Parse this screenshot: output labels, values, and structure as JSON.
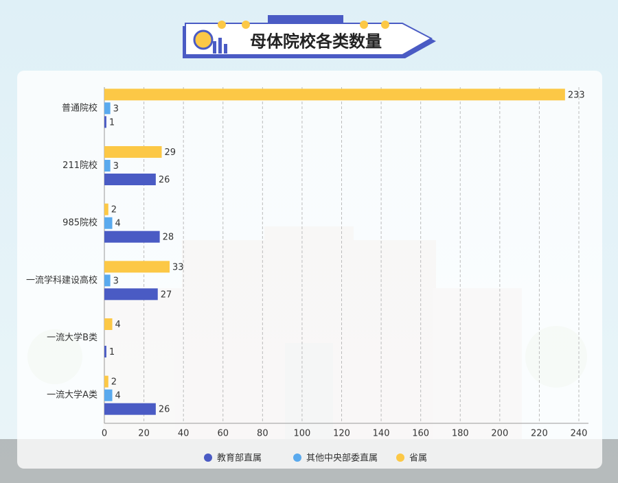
{
  "chart_data": {
    "type": "bar",
    "orientation": "horizontal",
    "title": "母体院校各类数量",
    "categories": [
      "普通院校",
      "211院校",
      "985院校",
      "一流学科建设高校",
      "一流大学B类",
      "一流大学A类"
    ],
    "series": [
      {
        "name": "教育部直属",
        "color": "#4a5bc4",
        "values": [
          1,
          26,
          28,
          27,
          1,
          26
        ]
      },
      {
        "name": "其他中央部委直属",
        "color": "#5aaaee",
        "values": [
          3,
          3,
          4,
          3,
          null,
          4
        ]
      },
      {
        "name": "省属",
        "color": "#fcc846",
        "values": [
          233,
          29,
          2,
          33,
          4,
          2
        ]
      }
    ],
    "xlim": [
      0,
      240
    ],
    "xticks": [
      0,
      20,
      40,
      60,
      80,
      100,
      120,
      140,
      160,
      180,
      200,
      220,
      240
    ],
    "grid": true,
    "legend": "bottom"
  }
}
